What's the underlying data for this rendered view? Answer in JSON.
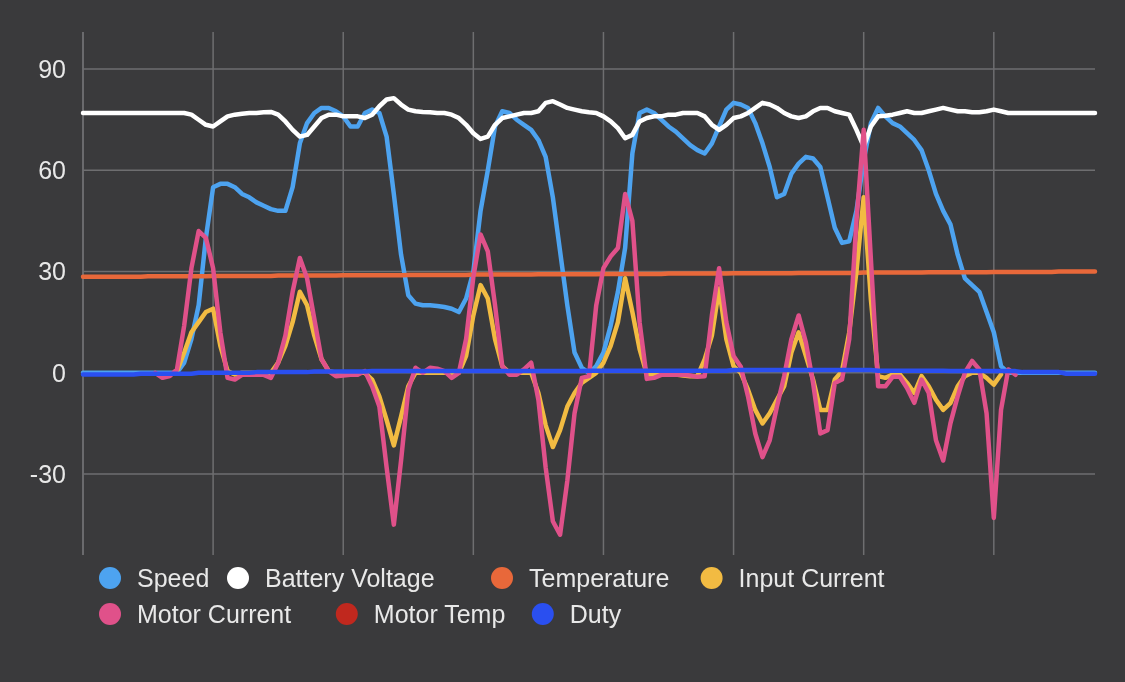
{
  "chart_data": {
    "type": "line",
    "ylim": [
      -54,
      101
    ],
    "yticks": [
      -30,
      0,
      30,
      60,
      90
    ],
    "tick_labels": "y",
    "grid": true,
    "legend": "bottom",
    "marker": "none",
    "line_style": "solid",
    "categories": [
      null,
      null,
      null,
      null,
      null,
      null,
      null,
      null,
      null,
      null,
      null,
      null,
      null,
      null,
      null,
      null,
      null,
      null,
      null,
      null,
      null,
      null,
      null,
      null,
      null,
      null,
      null,
      null,
      null,
      null,
      null,
      null,
      null,
      null,
      null,
      null,
      null,
      null,
      null,
      null,
      null,
      null,
      null,
      null,
      null,
      null,
      null,
      null,
      null,
      null,
      null,
      null,
      null,
      null,
      null,
      null,
      null,
      null,
      null,
      null,
      null,
      null,
      null,
      null,
      null,
      null,
      null,
      null,
      null,
      null,
      null,
      null,
      null,
      null,
      null,
      null,
      null,
      null,
      null,
      null,
      null,
      null,
      null,
      null,
      null,
      null,
      null,
      null,
      null,
      null,
      null,
      null,
      null,
      null,
      null,
      null,
      null,
      null,
      null,
      null,
      null,
      null,
      null,
      null,
      null,
      null,
      null,
      null,
      null,
      null,
      null,
      null,
      null,
      null,
      null,
      null,
      null,
      null,
      null,
      null,
      null,
      null,
      null,
      null,
      null,
      null,
      null,
      null,
      null,
      null,
      null,
      null,
      null,
      null,
      null,
      null,
      null,
      null,
      null,
      null,
      null
    ],
    "series": [
      {
        "name": "Speed",
        "color": "#4da3f0",
        "values": [
          0,
          0,
          0,
          0,
          0,
          0,
          0,
          0,
          0,
          0,
          0,
          0,
          0,
          0,
          3,
          10,
          20,
          40,
          55,
          56,
          56,
          55,
          53,
          52,
          50.5,
          49.5,
          48.5,
          48,
          48,
          55,
          68,
          74,
          77,
          78.5,
          78.5,
          77.5,
          76,
          73,
          73,
          77,
          78,
          77,
          70,
          53,
          35,
          23,
          20.5,
          20,
          20,
          19.8,
          19.5,
          19,
          18,
          22,
          30,
          48,
          60,
          73,
          77.5,
          77,
          75,
          73.5,
          72,
          69,
          64,
          52,
          36,
          20,
          6,
          1.5,
          0,
          2,
          6,
          14,
          24,
          37,
          65,
          77,
          78,
          77,
          75,
          73,
          71.5,
          69.5,
          67.5,
          66,
          65,
          68,
          73,
          78,
          80,
          79.5,
          78.5,
          74,
          68,
          61,
          52,
          53,
          59,
          62,
          64,
          63.5,
          61,
          52,
          43,
          38.5,
          39,
          48,
          63,
          74,
          78.5,
          76,
          74,
          73,
          71,
          69,
          66,
          60,
          53,
          48,
          44,
          35,
          28,
          26,
          24,
          18,
          12,
          2,
          0,
          0,
          0,
          0,
          0,
          0,
          0,
          0,
          0,
          0,
          0,
          0,
          0
        ]
      },
      {
        "name": "Battery Voltage",
        "color": "#ffffff",
        "values": [
          77,
          77,
          77,
          77,
          77,
          77,
          77,
          77,
          77,
          77,
          77,
          77,
          77,
          77,
          77,
          76.5,
          75,
          73.5,
          73,
          74.5,
          76,
          76.5,
          76.8,
          77,
          77,
          77.2,
          77.3,
          76.5,
          74.5,
          72,
          70,
          70.5,
          73,
          75.5,
          76.5,
          76.5,
          76,
          76,
          76,
          75.5,
          76.5,
          79,
          81,
          81.4,
          79.5,
          78,
          77.5,
          77.3,
          77.2,
          77,
          77,
          76.5,
          75.5,
          73.5,
          71,
          69.3,
          70,
          73.5,
          75.5,
          76,
          76.5,
          77,
          77,
          77.5,
          80,
          80.5,
          79.5,
          78.5,
          78,
          77.5,
          77.2,
          77,
          76,
          74.5,
          72.5,
          69.5,
          70.5,
          74.5,
          75.5,
          76,
          76,
          76.5,
          76.5,
          77,
          77,
          77,
          76,
          73.5,
          72,
          73.5,
          75.5,
          76,
          77,
          78.5,
          80,
          79.5,
          78.5,
          77,
          76,
          75.5,
          76,
          77.5,
          78.5,
          78.5,
          77.5,
          77,
          76.5,
          72,
          67,
          73,
          76,
          76.2,
          76.5,
          77,
          77.5,
          77,
          77,
          77.5,
          78,
          78.5,
          78,
          77.5,
          77.5,
          77.2,
          77.2,
          77.5,
          78,
          77.5,
          77,
          77,
          77,
          77,
          77,
          77,
          77,
          77,
          77,
          77,
          77,
          77,
          77
        ]
      },
      {
        "name": "Temperature",
        "color": "#e8683a",
        "values": [
          28.5,
          28.5,
          28.5,
          28.5,
          28.5,
          28.5,
          28.5,
          28.5,
          28.5,
          28.6,
          28.6,
          28.6,
          28.6,
          28.6,
          28.6,
          28.6,
          28.6,
          28.6,
          28.7,
          28.7,
          28.7,
          28.7,
          28.7,
          28.7,
          28.7,
          28.7,
          28.7,
          28.8,
          28.8,
          28.8,
          28.8,
          28.8,
          28.8,
          28.8,
          28.8,
          28.8,
          28.9,
          28.9,
          28.9,
          28.9,
          28.9,
          28.9,
          28.9,
          28.9,
          28.9,
          29,
          29,
          29,
          29,
          29,
          29,
          29,
          29,
          29,
          29.1,
          29.1,
          29.1,
          29.1,
          29.1,
          29.1,
          29.1,
          29.1,
          29.1,
          29.2,
          29.2,
          29.2,
          29.2,
          29.2,
          29.2,
          29.2,
          29.2,
          29.2,
          29.3,
          29.3,
          29.3,
          29.3,
          29.3,
          29.3,
          29.3,
          29.3,
          29.3,
          29.4,
          29.4,
          29.4,
          29.4,
          29.4,
          29.4,
          29.4,
          29.4,
          29.4,
          29.5,
          29.5,
          29.5,
          29.5,
          29.5,
          29.5,
          29.5,
          29.5,
          29.5,
          29.6,
          29.6,
          29.6,
          29.6,
          29.6,
          29.6,
          29.6,
          29.6,
          29.6,
          29.7,
          29.7,
          29.7,
          29.7,
          29.7,
          29.7,
          29.7,
          29.7,
          29.7,
          29.8,
          29.8,
          29.8,
          29.8,
          29.8,
          29.8,
          29.8,
          29.8,
          29.8,
          29.9,
          29.9,
          29.9,
          29.9,
          29.9,
          29.9,
          29.9,
          29.9,
          29.9,
          30,
          30,
          30,
          30,
          30,
          30
        ]
      },
      {
        "name": "Input Current",
        "color": "#f2bb42",
        "values": [
          null,
          null,
          null,
          null,
          null,
          null,
          null,
          null,
          null,
          null,
          null,
          null,
          null,
          0.5,
          6,
          12,
          15,
          18,
          19,
          8,
          0.5,
          -0.5,
          0,
          0,
          0,
          0,
          0,
          3,
          8,
          15,
          24,
          20,
          11,
          4,
          0.5,
          0,
          0,
          0,
          0,
          0,
          -2,
          -7,
          -14,
          -21.5,
          -13,
          -4,
          0,
          0,
          0,
          0,
          0,
          0,
          0,
          5,
          17,
          26,
          22,
          10,
          2,
          0,
          0,
          0,
          0,
          -6,
          -15.5,
          -22,
          -17,
          -10,
          -6,
          -3,
          -1.5,
          0,
          3,
          8,
          15,
          28,
          18,
          7,
          -0.5,
          -0.5,
          -0.5,
          -0.5,
          -0.5,
          -0.8,
          -1,
          -1,
          4,
          11,
          25,
          10,
          2,
          0,
          -5,
          -11,
          -15,
          -12,
          -8,
          -4,
          6,
          12,
          5,
          -2,
          -11,
          -11,
          -2,
          0.5,
          12,
          30,
          52,
          21.6,
          -1,
          -1.5,
          -0.5,
          -0.5,
          -3,
          -6,
          -1,
          -4,
          -8,
          -11,
          -9,
          -4,
          -1,
          0,
          0,
          -1.5,
          -3.5,
          -0.5,
          null,
          null,
          null,
          null,
          null,
          null,
          null,
          null,
          null,
          null,
          null,
          null,
          null
        ]
      },
      {
        "name": "Motor Current",
        "color": "#e0518a",
        "values": [
          null,
          null,
          null,
          null,
          null,
          null,
          null,
          null,
          null,
          null,
          0,
          -1.5,
          -1,
          1,
          14,
          31,
          42,
          40,
          31,
          12,
          -1.5,
          -2,
          -0.6,
          -0.6,
          -0.6,
          -0.6,
          -1.5,
          3,
          11,
          24,
          34,
          28,
          16,
          4,
          0.5,
          -1,
          -0.8,
          -0.6,
          -0.6,
          0.5,
          -4,
          -10,
          -28,
          -45,
          -26,
          -5,
          1.5,
          0,
          1.5,
          1.2,
          0.5,
          -1.5,
          0,
          10,
          28.4,
          41,
          36,
          20,
          2,
          -0.6,
          -0.6,
          1,
          3,
          -8,
          -28,
          -44,
          -48,
          -32,
          -12,
          -1.5,
          -1,
          20,
          31,
          34.5,
          37,
          53,
          45,
          15,
          -1.8,
          -1.5,
          -0.6,
          -0.6,
          -0.6,
          -0.6,
          -0.8,
          -1.2,
          -1,
          17,
          31,
          15,
          5,
          1.8,
          -7,
          -18,
          -25,
          -20,
          -10,
          -1,
          10,
          17,
          9,
          -3,
          -18,
          -17,
          -3,
          -2,
          10,
          45,
          72,
          33.5,
          -4,
          -4,
          -1.2,
          -1.2,
          -4.5,
          -8.9,
          -2,
          -6,
          -20,
          -26,
          -15,
          -7,
          0,
          3.5,
          1,
          -12,
          -43,
          -11,
          1,
          -0.6,
          null,
          null,
          null,
          null,
          null,
          null,
          null,
          null,
          null,
          null,
          null
        ]
      },
      {
        "name": "Motor Temp",
        "color": "#c0281e",
        "values": [
          null,
          null,
          null,
          null,
          null,
          null,
          null,
          null,
          null,
          null,
          null,
          null,
          null,
          null,
          null,
          null,
          null,
          null,
          null,
          null,
          null,
          null,
          null,
          null,
          null,
          null,
          null,
          null,
          null,
          null,
          null,
          null,
          null,
          null,
          null,
          null,
          null,
          null,
          null,
          null,
          null,
          null,
          null,
          null,
          null,
          null,
          null,
          null,
          null,
          null,
          null,
          null,
          null,
          null,
          null,
          null,
          null,
          null,
          null,
          null,
          null,
          null,
          null,
          null,
          null,
          null,
          null,
          null,
          null,
          null,
          null,
          null,
          null,
          null,
          null,
          null,
          null,
          null,
          null,
          null,
          null,
          null,
          null,
          null,
          null,
          null,
          null,
          null,
          null,
          null,
          null,
          null,
          null,
          null,
          null,
          null,
          null,
          null,
          null,
          null,
          null,
          null,
          null,
          null,
          null,
          null,
          null,
          null,
          null,
          null,
          null,
          null,
          null,
          null,
          null,
          null,
          null,
          null,
          null,
          null,
          null,
          null,
          null,
          null,
          null,
          null,
          null,
          null,
          null,
          null,
          null,
          null,
          null,
          null,
          null,
          null,
          null,
          null,
          null,
          null,
          null
        ]
      },
      {
        "name": "Duty",
        "color": "#2a4ff0",
        "values": [
          -0.5,
          -0.5,
          -0.5,
          -0.5,
          -0.5,
          -0.5,
          -0.5,
          -0.5,
          -0.3,
          -0.3,
          -0.3,
          -0.3,
          -0.3,
          -0.3,
          -0.3,
          -0.3,
          0,
          0,
          0,
          0,
          0,
          0,
          0,
          0,
          0.2,
          0.2,
          0.2,
          0.2,
          0.2,
          0.2,
          0.2,
          0.2,
          0.4,
          0.4,
          0.4,
          0.4,
          0.4,
          0.4,
          0.4,
          0.4,
          0.5,
          0.5,
          0.5,
          0.5,
          0.5,
          0.5,
          0.5,
          0.5,
          0.5,
          0.5,
          0.5,
          0.5,
          0.5,
          0.5,
          0.5,
          0.5,
          0.5,
          0.5,
          0.5,
          0.5,
          0.5,
          0.5,
          0.5,
          0.5,
          0.5,
          0.5,
          0.5,
          0.5,
          0.5,
          0.5,
          0.6,
          0.6,
          0.6,
          0.6,
          0.6,
          0.6,
          0.6,
          0.6,
          0.6,
          0.6,
          0.6,
          0.6,
          0.6,
          0.6,
          0.6,
          0.6,
          0.6,
          0.6,
          0.6,
          0.6,
          0.8,
          0.8,
          0.8,
          0.8,
          0.8,
          0.8,
          0.8,
          0.8,
          0.8,
          0.8,
          0.8,
          0.8,
          0.8,
          0.8,
          0.8,
          0.8,
          0.8,
          0.8,
          0.8,
          0.8,
          0.6,
          0.6,
          0.6,
          0.6,
          0.6,
          0.6,
          0.6,
          0.6,
          0.6,
          0.6,
          0.5,
          0.5,
          0.5,
          0.5,
          0.5,
          0.5,
          0.5,
          0.5,
          0.5,
          0.5,
          0.2,
          0.2,
          0.2,
          0.2,
          0.2,
          0.2,
          -0.3,
          -0.3,
          -0.3,
          -0.3,
          -0.3
        ]
      }
    ]
  }
}
